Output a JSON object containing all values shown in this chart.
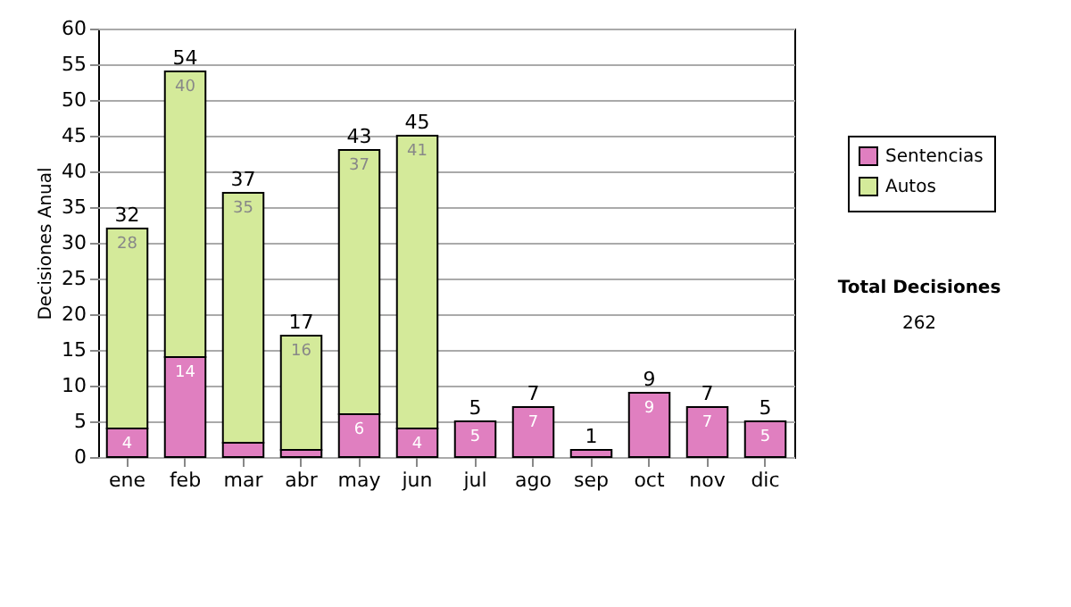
{
  "chart_data": {
    "type": "bar",
    "stacked": true,
    "ylabel": "Decisiones Anual",
    "categories": [
      "ene",
      "feb",
      "mar",
      "abr",
      "may",
      "jun",
      "jul",
      "ago",
      "sep",
      "oct",
      "nov",
      "dic"
    ],
    "series": [
      {
        "name": "Sentencias",
        "color": "#e07fc0",
        "values": [
          4,
          14,
          2,
          1,
          6,
          4,
          5,
          7,
          1,
          9,
          7,
          5
        ],
        "value_labels": [
          "4",
          "14",
          null,
          null,
          "6",
          "4",
          "5",
          "7",
          null,
          "9",
          "7",
          "5"
        ]
      },
      {
        "name": "Autos",
        "color": "#d4ea9a",
        "values": [
          28,
          40,
          35,
          16,
          37,
          41,
          null,
          null,
          null,
          null,
          null,
          null
        ],
        "value_labels": [
          "28",
          "40",
          "35",
          "16",
          "37",
          "41",
          null,
          null,
          null,
          null,
          null,
          null
        ]
      }
    ],
    "totals": [
      "32",
      "54",
      "37",
      "17",
      "43",
      "45",
      "5",
      "7",
      "1",
      "9",
      "7",
      "5"
    ],
    "ylim": [
      0,
      60
    ],
    "yticks": [
      0,
      5,
      10,
      15,
      20,
      25,
      30,
      35,
      40,
      45,
      50,
      55,
      60
    ],
    "grid": "y",
    "legend": "right",
    "annotations": [
      "Total Decisiones",
      "262"
    ]
  }
}
